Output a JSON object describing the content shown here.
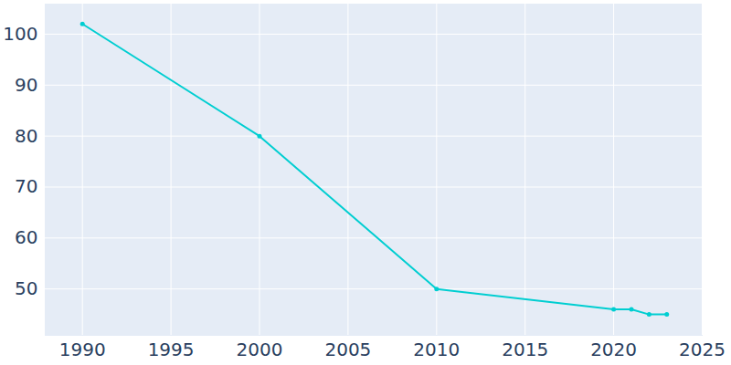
{
  "chart_data": {
    "type": "line",
    "x": [
      1990,
      2000,
      2010,
      2020,
      2021,
      2022,
      2023
    ],
    "values": [
      102,
      80,
      50,
      46,
      46,
      45,
      45
    ],
    "color": "#00ced1",
    "marker": "circle",
    "line_style": "solid",
    "xlim": [
      1987.9,
      2025
    ],
    "xticks": [
      1990,
      1995,
      2000,
      2005,
      2010,
      2015,
      2020,
      2025
    ],
    "ylim": [
      40.9,
      105.9
    ],
    "yticks": [
      50,
      60,
      70,
      80,
      90,
      100
    ],
    "grid": true
  }
}
